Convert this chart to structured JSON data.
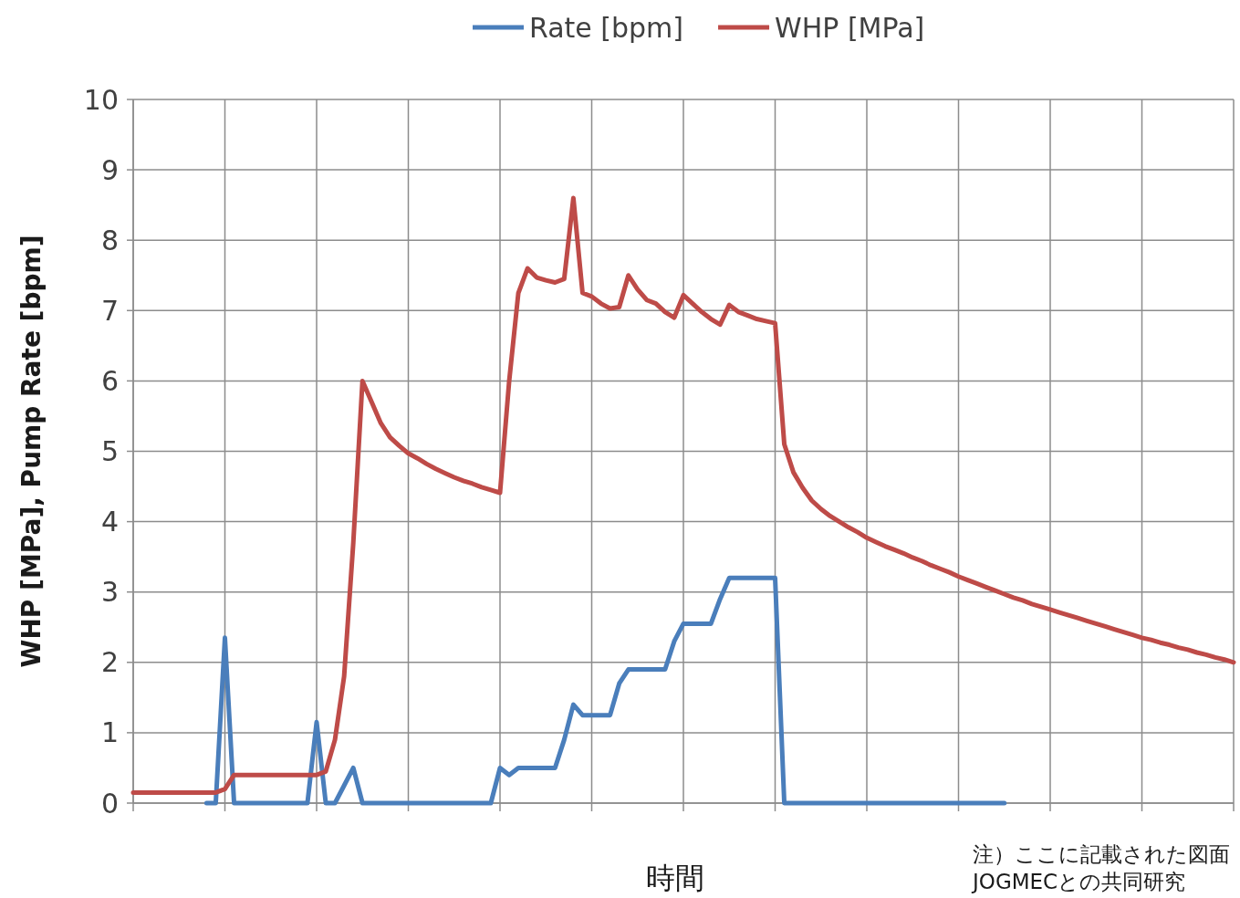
{
  "chart_data": {
    "type": "line",
    "ylabel": "WHP [MPa], Pump Rate [bpm]",
    "xlabel": "時間",
    "annotations": [
      "注）ここに記載された図面",
      "JOGMECとの共同研究"
    ],
    "categories": [
      null,
      null,
      null,
      null,
      null,
      null,
      null,
      null,
      null,
      null,
      null,
      null,
      null,
      null,
      null,
      null,
      null,
      null,
      null,
      null,
      null,
      null,
      null,
      null,
      null,
      null,
      null,
      null,
      null,
      null,
      null,
      null,
      null,
      null,
      null,
      null,
      null,
      null,
      null,
      null,
      null,
      null,
      null,
      null,
      null,
      null,
      null,
      null,
      null,
      null,
      null,
      null,
      null,
      null,
      null,
      null,
      null,
      null,
      null,
      null,
      null,
      null,
      null,
      null,
      null,
      null,
      null,
      null,
      null,
      null,
      null,
      null,
      null,
      null,
      null,
      null,
      null,
      null,
      null,
      null,
      null,
      null,
      null,
      null,
      null,
      null,
      null,
      null,
      null,
      null,
      null,
      null,
      null,
      null,
      null,
      null,
      null,
      null,
      null,
      null,
      null,
      null,
      null,
      null,
      null,
      null,
      null,
      null,
      null,
      null,
      null,
      null,
      null,
      null,
      null,
      null,
      null,
      null,
      null,
      null,
      null
    ],
    "series": [
      {
        "name": "Rate [bpm]",
        "color": "#4a7ebb",
        "values": [
          null,
          null,
          null,
          null,
          null,
          null,
          null,
          null,
          0,
          0,
          2.35,
          0,
          0,
          0,
          0,
          0,
          0,
          0,
          0,
          0,
          1.15,
          0,
          0,
          0.25,
          0.5,
          0,
          0,
          0,
          0,
          0,
          0,
          0,
          0,
          0,
          0,
          0,
          0,
          0,
          0,
          0,
          0.5,
          0.4,
          0.5,
          0.5,
          0.5,
          0.5,
          0.5,
          0.9,
          1.4,
          1.25,
          1.25,
          1.25,
          1.25,
          1.7,
          1.9,
          1.9,
          1.9,
          1.9,
          1.9,
          2.3,
          2.55,
          2.55,
          2.55,
          2.55,
          2.9,
          3.2,
          3.2,
          3.2,
          3.2,
          3.2,
          3.2,
          0,
          0,
          0,
          0,
          0,
          0,
          0,
          0,
          0,
          0,
          0,
          0,
          0,
          0,
          0,
          0,
          0,
          0,
          0,
          0,
          0,
          0,
          0,
          0,
          0,
          null,
          null,
          null,
          null,
          null,
          null,
          null,
          null,
          null,
          null,
          null,
          null,
          null,
          null,
          null,
          null,
          null,
          null,
          null,
          null,
          null,
          null,
          null,
          null,
          null
        ]
      },
      {
        "name": "WHP [MPa]",
        "color": "#be4b48",
        "values": [
          0.15,
          0.15,
          0.15,
          0.15,
          0.15,
          0.15,
          0.15,
          0.15,
          0.15,
          0.15,
          0.2,
          0.4,
          0.4,
          0.4,
          0.4,
          0.4,
          0.4,
          0.4,
          0.4,
          0.4,
          0.4,
          0.45,
          0.9,
          1.8,
          3.7,
          6.0,
          5.7,
          5.4,
          5.2,
          5.08,
          4.97,
          4.9,
          4.82,
          4.75,
          4.69,
          4.63,
          4.58,
          4.54,
          4.49,
          4.45,
          4.41,
          6.0,
          7.25,
          7.6,
          7.47,
          7.43,
          7.4,
          7.45,
          8.6,
          7.25,
          7.2,
          7.1,
          7.03,
          7.05,
          7.5,
          7.3,
          7.15,
          7.1,
          6.98,
          6.9,
          7.22,
          7.1,
          6.98,
          6.88,
          6.8,
          7.08,
          6.98,
          6.93,
          6.88,
          6.85,
          6.82,
          5.1,
          4.7,
          4.48,
          4.3,
          4.18,
          4.08,
          4.0,
          3.92,
          3.85,
          3.77,
          3.71,
          3.65,
          3.6,
          3.55,
          3.49,
          3.44,
          3.38,
          3.33,
          3.28,
          3.22,
          3.17,
          3.12,
          3.07,
          3.02,
          2.97,
          2.92,
          2.88,
          2.83,
          2.79,
          2.75,
          2.71,
          2.67,
          2.63,
          2.59,
          2.55,
          2.51,
          2.47,
          2.43,
          2.39,
          2.35,
          2.32,
          2.28,
          2.25,
          2.21,
          2.18,
          2.14,
          2.11,
          2.07,
          2.04,
          2.0
        ]
      }
    ],
    "ylim": [
      0,
      10
    ],
    "yticks": [
      0,
      1,
      2,
      3,
      4,
      5,
      6,
      7,
      8,
      9,
      10
    ],
    "grid": true,
    "legend": "top",
    "tick_labels": "y",
    "marker": "none",
    "line_style": "solid"
  }
}
